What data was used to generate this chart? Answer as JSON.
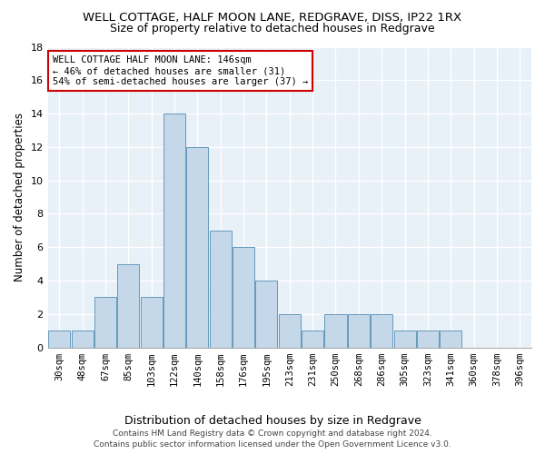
{
  "title": "WELL COTTAGE, HALF MOON LANE, REDGRAVE, DISS, IP22 1RX",
  "subtitle": "Size of property relative to detached houses in Redgrave",
  "xlabel": "Distribution of detached houses by size in Redgrave",
  "ylabel": "Number of detached properties",
  "bin_labels": [
    "30sqm",
    "48sqm",
    "67sqm",
    "85sqm",
    "103sqm",
    "122sqm",
    "140sqm",
    "158sqm",
    "176sqm",
    "195sqm",
    "213sqm",
    "231sqm",
    "250sqm",
    "268sqm",
    "286sqm",
    "305sqm",
    "323sqm",
    "341sqm",
    "360sqm",
    "378sqm",
    "396sqm"
  ],
  "bar_heights": [
    1,
    1,
    3,
    5,
    3,
    14,
    12,
    7,
    6,
    4,
    2,
    1,
    2,
    2,
    2,
    1,
    1,
    1,
    0,
    0,
    0
  ],
  "bar_color": "#c5d8ea",
  "bar_edgecolor": "#6699bb",
  "annotation_text_line1": "WELL COTTAGE HALF MOON LANE: 146sqm",
  "annotation_text_line2": "← 46% of detached houses are smaller (31)",
  "annotation_text_line3": "54% of semi-detached houses are larger (37) →",
  "annotation_box_facecolor": "#ffffff",
  "annotation_box_edgecolor": "#cc0000",
  "ylim": [
    0,
    18
  ],
  "yticks": [
    0,
    2,
    4,
    6,
    8,
    10,
    12,
    14,
    16,
    18
  ],
  "footer_line1": "Contains HM Land Registry data © Crown copyright and database right 2024.",
  "footer_line2": "Contains public sector information licensed under the Open Government Licence v3.0.",
  "plot_bg_color": "#e8f0f8",
  "grid_color": "#ffffff",
  "title_fontsize": 9.5,
  "subtitle_fontsize": 9,
  "tick_fontsize": 7.5,
  "ylabel_fontsize": 8.5,
  "xlabel_fontsize": 9,
  "footer_fontsize": 6.5,
  "ann_fontsize": 7.5
}
